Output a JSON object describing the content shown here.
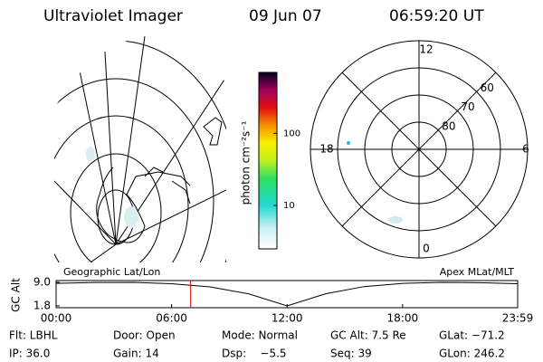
{
  "header": {
    "instrument": "Ultraviolet Imager",
    "date": "09 Jun 07",
    "time": "06:59:20 UT"
  },
  "colorbar": {
    "label": "photon cm⁻²s⁻¹",
    "scale": "log",
    "ticks": [
      10,
      100
    ],
    "lim": [
      2.5,
      700
    ]
  },
  "polar": {
    "rlim": [
      90,
      50
    ],
    "ring_labels": [
      80,
      70,
      60
    ],
    "mlt_labels": [
      12,
      18,
      6,
      0
    ]
  },
  "timeline": {
    "left_label": "Geographic Lat/Lon",
    "right_label": "Apex MLat/MLT",
    "ylabel": "GC Alt",
    "ylim": [
      1.8,
      9.0
    ],
    "yticks": [
      {
        "value": 9.0,
        "label": "9.0"
      },
      1.8
    ],
    "xlim": [
      0,
      23.98
    ],
    "xticks": [
      {
        "value": 0,
        "label": "00:00"
      },
      {
        "value": 6,
        "label": "06:00"
      },
      {
        "value": 12,
        "label": "12:00"
      },
      {
        "value": 18,
        "label": "18:00"
      },
      {
        "value": 23.98,
        "label": "23:59"
      }
    ],
    "x": [
      0,
      2,
      4,
      6,
      8,
      10,
      12,
      14,
      16,
      18,
      20,
      22,
      23.98
    ],
    "values": [
      8.7,
      8.95,
      9.0,
      8.6,
      7.6,
      5.5,
      1.8,
      5.5,
      7.7,
      8.7,
      9.0,
      8.9,
      8.6
    ],
    "marker_hour": 6.99,
    "marker_color": "#e00000"
  },
  "footer": {
    "rows": [
      [
        "Flt: LBHL",
        "Door: Open",
        "Mode: Normal",
        "GC Alt: 7.5 Re",
        "GLat: −71.2"
      ],
      [
        "IP: 36.0",
        "Gain: 14",
        "Dsp:    −5.5",
        "Seq: 39",
        "GLon: 246.2"
      ]
    ]
  }
}
